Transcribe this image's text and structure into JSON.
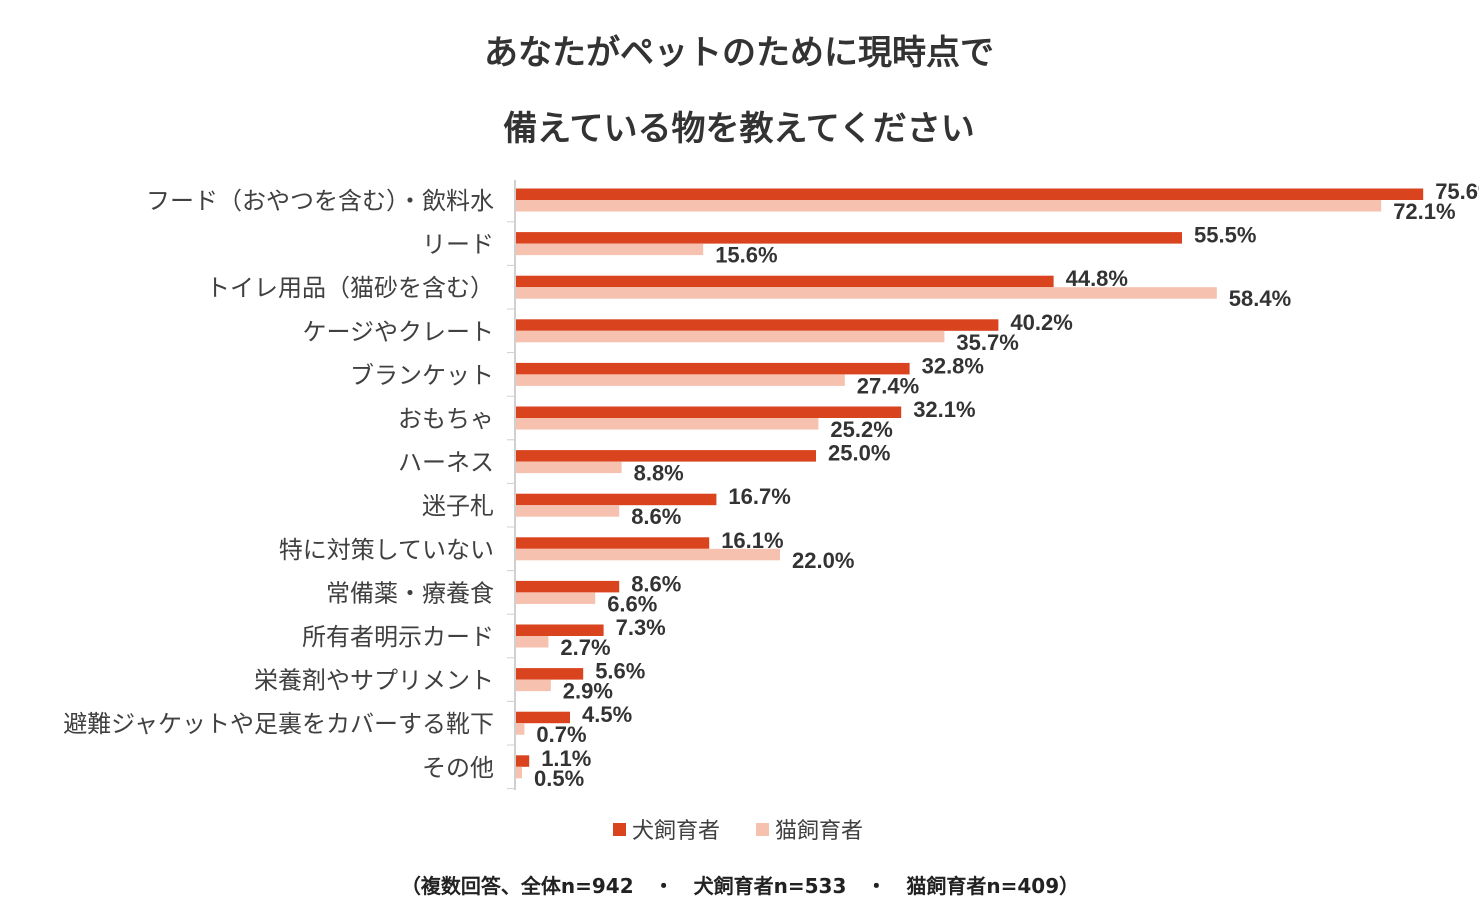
{
  "chart_data": {
    "type": "bar",
    "orientation": "horizontal",
    "title_lines": [
      "あなたがペットのために現時点で",
      "備えている物を教えてください"
    ],
    "categories": [
      "フード（おやつを含む）・飲料水",
      "リード",
      "トイレ用品（猫砂を含む）",
      "ケージやクレート",
      "ブランケット",
      "おもちゃ",
      "ハーネス",
      "迷子札",
      "特に対策していない",
      "常備薬・療養食",
      "所有者明示カード",
      "栄養剤やサプリメント",
      "避難ジャケットや足裏をカバーする靴下",
      "その他"
    ],
    "series": [
      {
        "name": "犬飼育者",
        "color": "#D9431E",
        "values": [
          75.6,
          55.5,
          44.8,
          40.2,
          32.8,
          32.1,
          25.0,
          16.7,
          16.1,
          8.6,
          7.3,
          5.6,
          4.5,
          1.1
        ],
        "labels": [
          "75.6%",
          "55.5%",
          "44.8%",
          "40.2%",
          "32.8%",
          "32.1%",
          "25.0%",
          "16.7%",
          "16.1%",
          "8.6%",
          "7.3%",
          "5.6%",
          "4.5%",
          "1.1%"
        ]
      },
      {
        "name": "猫飼育者",
        "color": "#F6C1AE",
        "values": [
          72.1,
          15.6,
          58.4,
          35.7,
          27.4,
          25.2,
          8.8,
          8.6,
          22.0,
          6.6,
          2.7,
          2.9,
          0.7,
          0.5
        ],
        "labels": [
          "72.1%",
          "15.6%",
          "58.4%",
          "35.7%",
          "27.4%",
          "25.2%",
          "8.8%",
          "8.6%",
          "22.0%",
          "6.6%",
          "2.7%",
          "2.9%",
          "0.7%",
          "0.5%"
        ]
      }
    ],
    "xlim": [
      0,
      80
    ],
    "grid": false,
    "legend_position": "bottom",
    "note": "（複数回答、全体n=942　・　犬飼育者n=533　・　猫飼育者n=409）"
  }
}
